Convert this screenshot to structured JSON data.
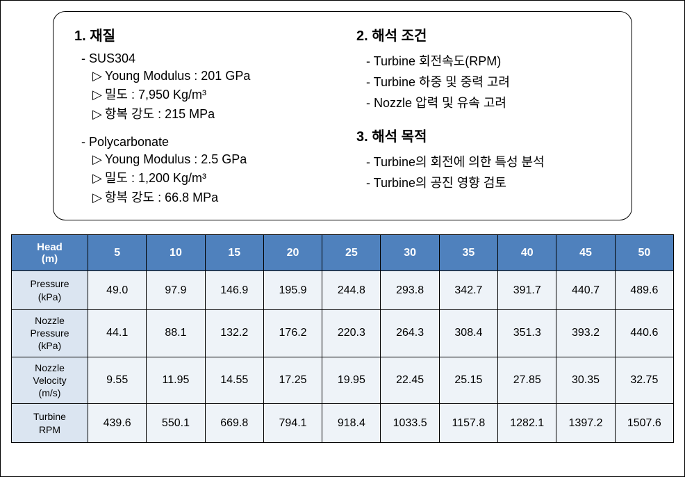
{
  "info": {
    "section1": {
      "title": "1. 재질",
      "mat1": {
        "name": "- SUS304",
        "props": [
          "Young Modulus : 201 GPa",
          "밀도 : 7,950 Kg/m³",
          "항복 강도 : 215 MPa"
        ]
      },
      "mat2": {
        "name": "- Polycarbonate",
        "props": [
          "Young Modulus : 2.5 GPa",
          "밀도 : 1,200 Kg/m³",
          "항복 강도 : 66.8 MPa"
        ]
      }
    },
    "section2": {
      "title": "2. 해석 조건",
      "items": [
        "- Turbine 회전속도(RPM)",
        "- Turbine 하중 및 중력 고려",
        "- Nozzle 압력 및 유속 고려"
      ]
    },
    "section3": {
      "title": "3. 해석 목적",
      "items": [
        "- Turbine의 회전에 의한 특성 분석",
        "- Turbine의 공진 영향 검토"
      ]
    }
  },
  "table": {
    "type": "table",
    "header_bg": "#4f81bd",
    "header_fg": "#ffffff",
    "label_bg": "#dbe5f1",
    "cell_bg": "#eef3f8",
    "border_color": "#000000",
    "corner": "Head\n(m)",
    "columns": [
      "5",
      "10",
      "15",
      "20",
      "25",
      "30",
      "35",
      "40",
      "45",
      "50"
    ],
    "rows": [
      {
        "label": "Pressure\n(kPa)",
        "cells": [
          "49.0",
          "97.9",
          "146.9",
          "195.9",
          "244.8",
          "293.8",
          "342.7",
          "391.7",
          "440.7",
          "489.6"
        ]
      },
      {
        "label": "Nozzle\nPressure\n(kPa)",
        "cells": [
          "44.1",
          "88.1",
          "132.2",
          "176.2",
          "220.3",
          "264.3",
          "308.4",
          "351.3",
          "393.2",
          "440.6"
        ]
      },
      {
        "label": "Nozzle\nVelocity\n(m/s)",
        "cells": [
          "9.55",
          "11.95",
          "14.55",
          "17.25",
          "19.95",
          "22.45",
          "25.15",
          "27.85",
          "30.35",
          "32.75"
        ]
      },
      {
        "label": "Turbine\nRPM",
        "cells": [
          "439.6",
          "550.1",
          "669.8",
          "794.1",
          "918.4",
          "1033.5",
          "1157.8",
          "1282.1",
          "1397.2",
          "1507.6"
        ]
      }
    ]
  }
}
